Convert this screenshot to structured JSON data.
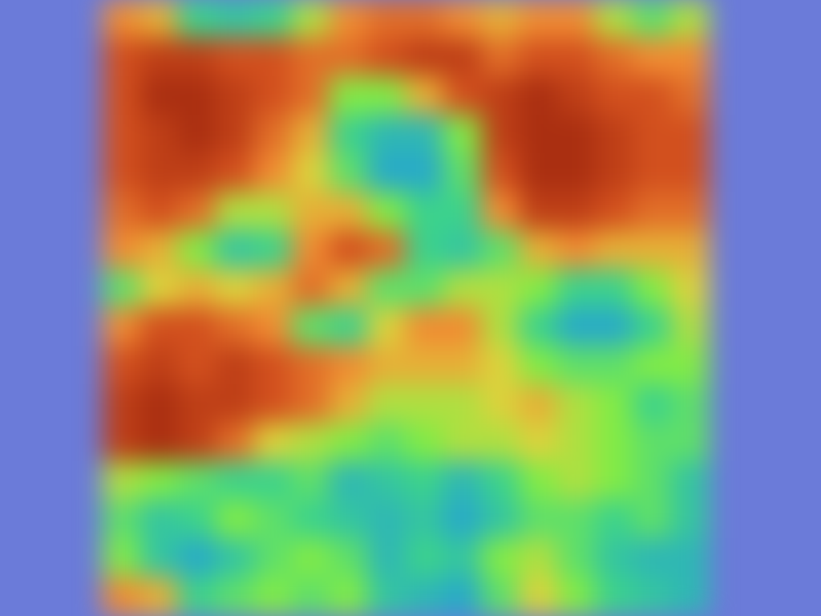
{
  "chart_data": {
    "type": "heatmap",
    "xlim": [
      0,
      16
    ],
    "ylim": [
      0,
      16
    ],
    "tick_labels": false,
    "colorbar_range": [
      0,
      1
    ],
    "cells": [
      [
        0.75,
        0.7,
        0.45,
        0.4,
        0.45,
        0.6,
        0.75,
        0.8,
        0.8,
        0.75,
        0.7,
        0.75,
        0.75,
        0.6,
        0.5,
        0.6
      ],
      [
        0.85,
        0.9,
        0.9,
        0.85,
        0.85,
        0.8,
        0.8,
        0.85,
        0.9,
        0.9,
        0.8,
        0.85,
        0.85,
        0.8,
        0.75,
        0.75
      ],
      [
        0.85,
        0.95,
        0.95,
        0.9,
        0.85,
        0.8,
        0.55,
        0.55,
        0.7,
        0.85,
        0.9,
        0.95,
        0.9,
        0.85,
        0.85,
        0.8
      ],
      [
        0.85,
        0.9,
        0.95,
        0.9,
        0.8,
        0.7,
        0.45,
        0.35,
        0.35,
        0.55,
        0.9,
        0.95,
        0.95,
        0.9,
        0.85,
        0.85
      ],
      [
        0.85,
        0.9,
        0.9,
        0.85,
        0.75,
        0.65,
        0.5,
        0.3,
        0.3,
        0.5,
        0.85,
        0.95,
        0.95,
        0.9,
        0.85,
        0.85
      ],
      [
        0.8,
        0.85,
        0.8,
        0.6,
        0.6,
        0.7,
        0.7,
        0.55,
        0.45,
        0.45,
        0.75,
        0.9,
        0.9,
        0.85,
        0.8,
        0.8
      ],
      [
        0.75,
        0.7,
        0.55,
        0.4,
        0.45,
        0.75,
        0.85,
        0.8,
        0.45,
        0.4,
        0.5,
        0.7,
        0.75,
        0.7,
        0.7,
        0.7
      ],
      [
        0.5,
        0.65,
        0.7,
        0.65,
        0.7,
        0.8,
        0.7,
        0.5,
        0.5,
        0.6,
        0.6,
        0.55,
        0.45,
        0.45,
        0.55,
        0.65
      ],
      [
        0.75,
        0.85,
        0.85,
        0.8,
        0.75,
        0.5,
        0.45,
        0.65,
        0.75,
        0.75,
        0.6,
        0.45,
        0.3,
        0.3,
        0.45,
        0.6
      ],
      [
        0.85,
        0.9,
        0.85,
        0.9,
        0.85,
        0.8,
        0.75,
        0.7,
        0.7,
        0.7,
        0.65,
        0.55,
        0.5,
        0.5,
        0.55,
        0.55
      ],
      [
        0.9,
        0.95,
        0.9,
        0.9,
        0.85,
        0.8,
        0.7,
        0.6,
        0.6,
        0.6,
        0.65,
        0.7,
        0.6,
        0.55,
        0.45,
        0.5
      ],
      [
        0.9,
        0.95,
        0.9,
        0.8,
        0.65,
        0.6,
        0.55,
        0.5,
        0.55,
        0.6,
        0.6,
        0.65,
        0.6,
        0.55,
        0.5,
        0.5
      ],
      [
        0.6,
        0.55,
        0.5,
        0.45,
        0.45,
        0.5,
        0.35,
        0.4,
        0.45,
        0.35,
        0.45,
        0.55,
        0.6,
        0.55,
        0.5,
        0.4
      ],
      [
        0.5,
        0.4,
        0.45,
        0.55,
        0.5,
        0.45,
        0.4,
        0.35,
        0.4,
        0.3,
        0.4,
        0.5,
        0.5,
        0.45,
        0.5,
        0.4
      ],
      [
        0.55,
        0.4,
        0.3,
        0.4,
        0.5,
        0.55,
        0.5,
        0.35,
        0.45,
        0.4,
        0.55,
        0.6,
        0.5,
        0.4,
        0.35,
        0.35
      ],
      [
        0.75,
        0.7,
        0.45,
        0.5,
        0.55,
        0.5,
        0.55,
        0.4,
        0.35,
        0.3,
        0.5,
        0.65,
        0.55,
        0.45,
        0.4,
        0.35
      ]
    ]
  }
}
